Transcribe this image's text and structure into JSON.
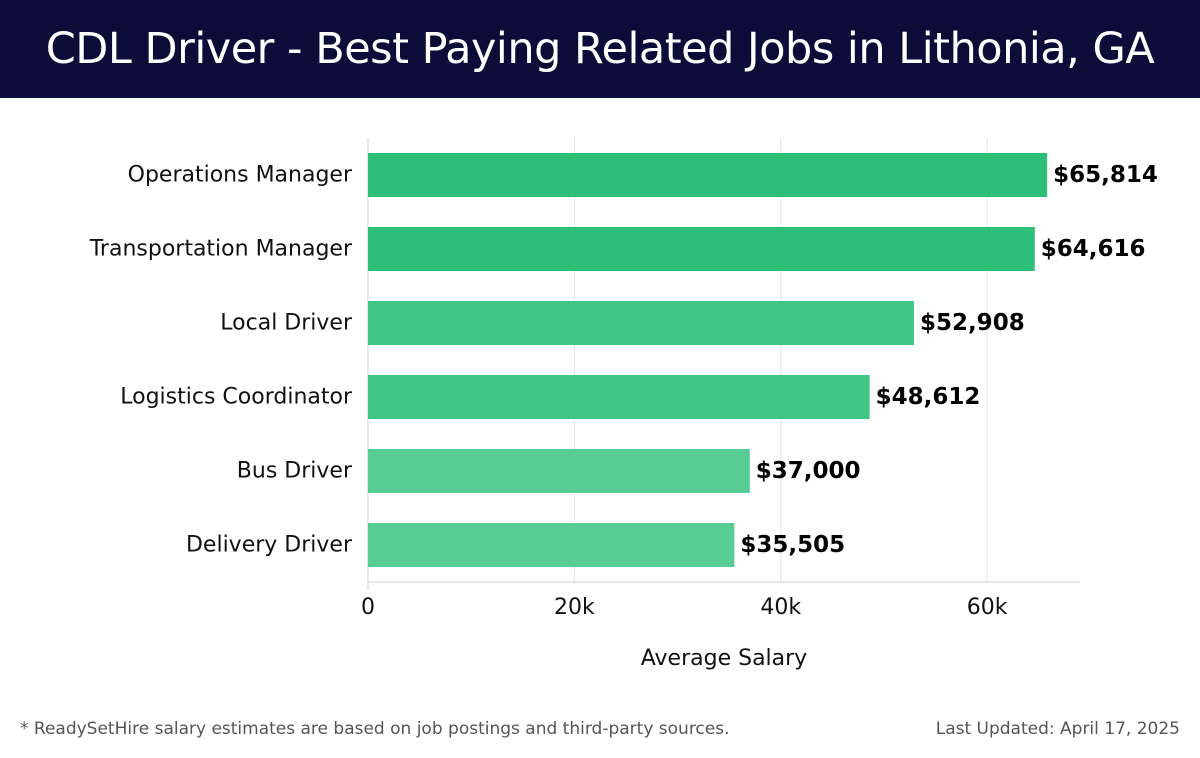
{
  "header": {
    "title": "CDL Driver - Best Paying Related Jobs in Lithonia, GA"
  },
  "chart_data": {
    "type": "bar",
    "orientation": "horizontal",
    "categories": [
      "Operations Manager",
      "Transportation Manager",
      "Local Driver",
      "Logistics Coordinator",
      "Bus Driver",
      "Delivery Driver"
    ],
    "values": [
      65814,
      64616,
      52908,
      48612,
      37000,
      35505
    ],
    "value_labels": [
      "$65,814",
      "$64,616",
      "$52,908",
      "$48,612",
      "$37,000",
      "$35,505"
    ],
    "bar_colors": [
      "#2dbf78",
      "#2dbf78",
      "#40c588",
      "#40c588",
      "#57cc95",
      "#57cc95"
    ],
    "xlabel": "Average Salary",
    "ylabel": "",
    "xlim": [
      0,
      69000
    ],
    "x_ticks": [
      0,
      20000,
      40000,
      60000
    ],
    "x_tick_labels": [
      "0",
      "20k",
      "40k",
      "60k"
    ],
    "grid": "vertical",
    "legend": "none"
  },
  "footer": {
    "note": "* ReadySetHire salary estimates are based on job postings and third-party sources.",
    "updated": "Last Updated: April 17, 2025"
  },
  "colors": {
    "header_bg": "#0b0d38",
    "header_text": "#ffffff",
    "gridline": "#e3e3e3",
    "axis_line": "#cfcfcf",
    "label_text": "#111111",
    "footer_text": "#555555"
  }
}
